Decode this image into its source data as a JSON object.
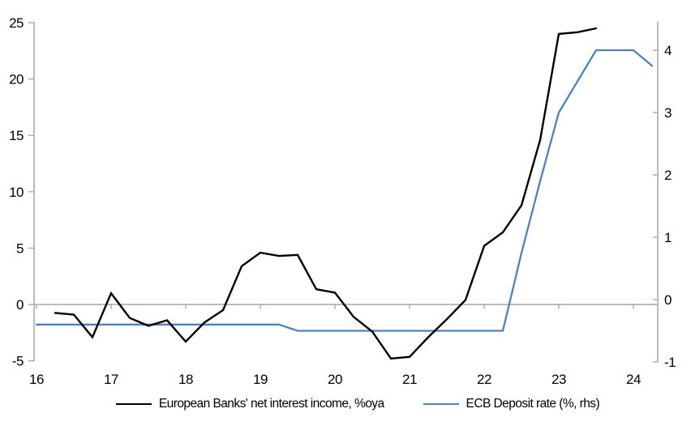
{
  "chart_data": {
    "type": "line",
    "title": "",
    "subtitle": "",
    "grid": "zero-line-only",
    "legend_position": "bottom-center",
    "x_axis": {
      "ticks": [
        16,
        17,
        18,
        19,
        20,
        21,
        22,
        23,
        24
      ],
      "labels": [
        "16",
        "17",
        "18",
        "19",
        "20",
        "21",
        "22",
        "23",
        "24"
      ],
      "range": [
        16,
        24.33
      ]
    },
    "left_axis": {
      "ticks": [
        -5,
        0,
        5,
        10,
        15,
        20,
        25
      ],
      "labels": [
        "-5",
        "0",
        "5",
        "10",
        "15",
        "20",
        "25"
      ],
      "range": [
        -5,
        25
      ]
    },
    "right_axis": {
      "ticks": [
        -1,
        0,
        1,
        2,
        3,
        4
      ],
      "labels": [
        "-1",
        "0",
        "1",
        "2",
        "3",
        "4"
      ],
      "range": [
        -1,
        4.35
      ]
    },
    "series": [
      {
        "name": "European Banks' net interest income, %oya",
        "axis": "left",
        "color": "#000000",
        "width": 2.4,
        "x": [
          16.25,
          16.5,
          16.75,
          17.0,
          17.25,
          17.5,
          17.75,
          18.0,
          18.25,
          18.5,
          18.75,
          19.0,
          19.25,
          19.5,
          19.75,
          20.0,
          20.25,
          20.5,
          20.75,
          21.0,
          21.25,
          21.5,
          21.75,
          22.0,
          22.25,
          22.5,
          22.75,
          23.0,
          23.25,
          23.5
        ],
        "values": [
          -0.75,
          -0.9,
          -2.9,
          1.0,
          -1.2,
          -1.9,
          -1.4,
          -3.3,
          -1.6,
          -0.5,
          3.4,
          4.6,
          4.3,
          4.4,
          1.35,
          1.05,
          -1.1,
          -2.4,
          -4.8,
          -4.65,
          -2.9,
          -1.3,
          0.4,
          5.2,
          6.4,
          8.8,
          14.6,
          24.0,
          24.15,
          24.5
        ]
      },
      {
        "name": "ECB Deposit rate (%, rhs)",
        "axis": "right",
        "color": "#4f81bd",
        "width": 2.3,
        "x": [
          16.0,
          16.25,
          16.5,
          16.75,
          17.0,
          17.25,
          17.5,
          17.75,
          18.0,
          18.25,
          18.5,
          18.75,
          19.0,
          19.25,
          19.5,
          19.75,
          20.0,
          20.25,
          20.5,
          20.75,
          21.0,
          21.25,
          21.5,
          21.75,
          22.0,
          22.25,
          22.5,
          22.75,
          23.0,
          23.25,
          23.5,
          23.75,
          24.0,
          24.25
        ],
        "values": [
          -0.4,
          -0.4,
          -0.4,
          -0.4,
          -0.4,
          -0.4,
          -0.4,
          -0.4,
          -0.4,
          -0.4,
          -0.4,
          -0.4,
          -0.4,
          -0.4,
          -0.5,
          -0.5,
          -0.5,
          -0.5,
          -0.5,
          -0.5,
          -0.5,
          -0.5,
          -0.5,
          -0.5,
          -0.5,
          -0.5,
          0.75,
          1.9,
          3.0,
          3.5,
          4.0,
          4.0,
          4.0,
          3.75
        ]
      }
    ]
  },
  "colors": {
    "axis": "#a6a6a6",
    "zero_line": "#a6a6a6",
    "text": "#000000",
    "background": "#ffffff"
  }
}
